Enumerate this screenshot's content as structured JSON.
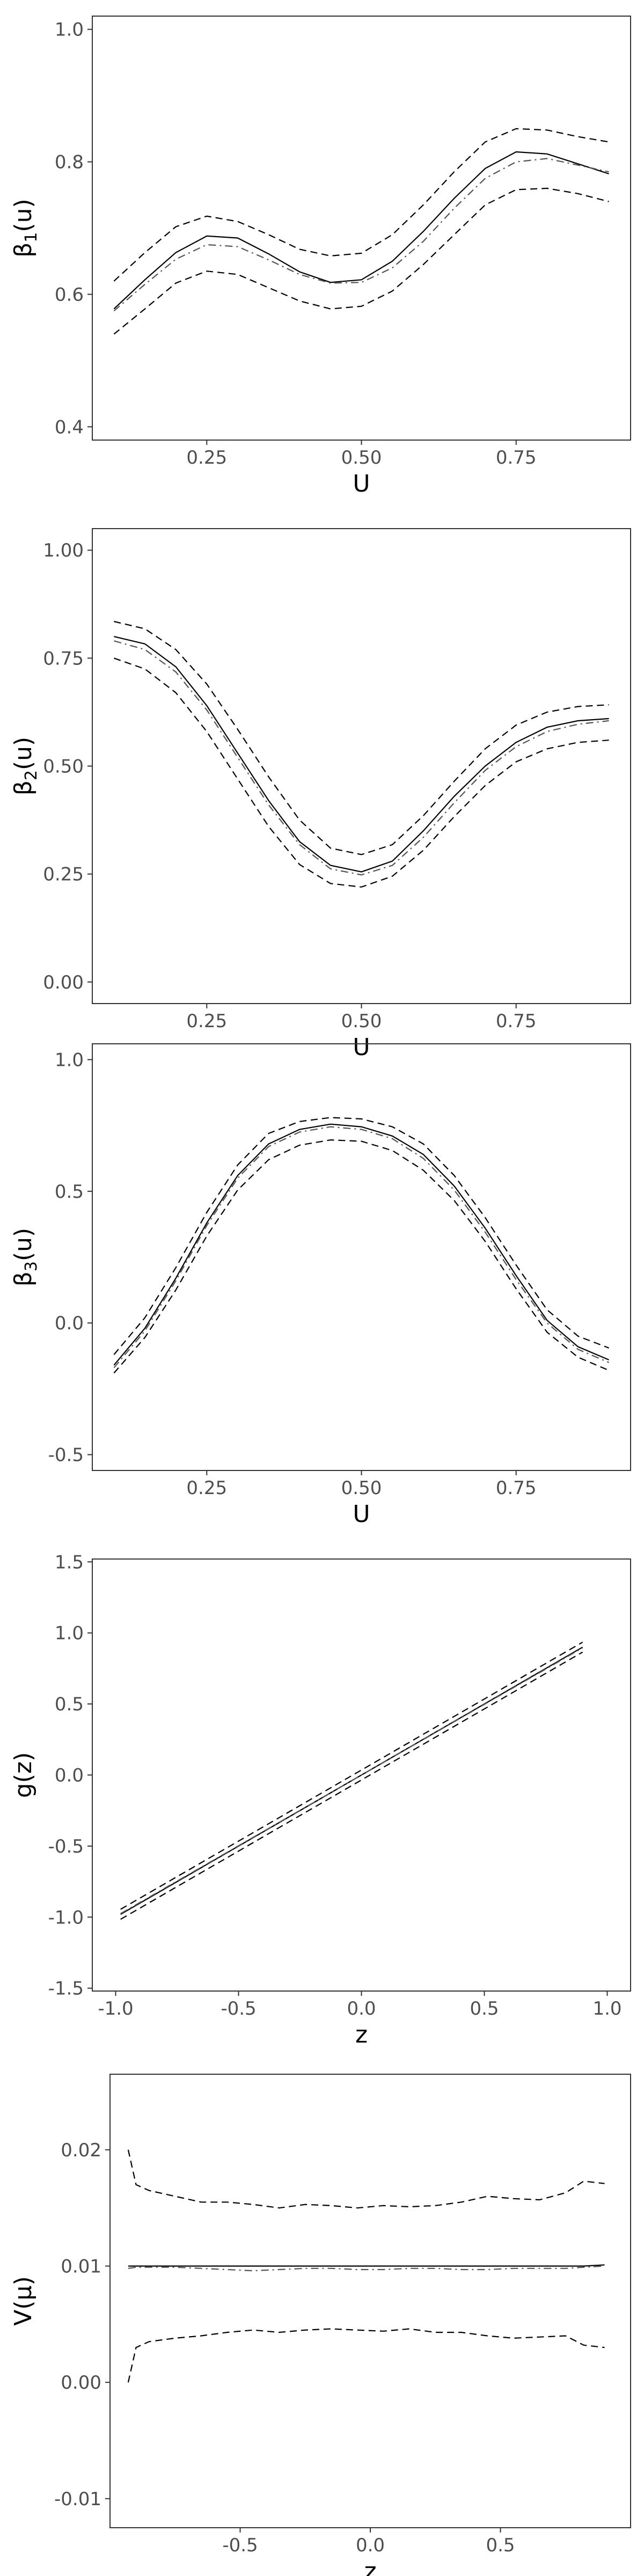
{
  "chart_data": [
    {
      "type": "line",
      "xlabel": "U",
      "ylabel": "β",
      "ylabel_sub": "1",
      "ylabel_suffix": "(u)",
      "xlim": [
        0.065,
        0.935
      ],
      "ylim": [
        0.38,
        1.02
      ],
      "xticks": [
        0.25,
        0.5,
        0.75
      ],
      "xtick_labels": [
        "0.25",
        "0.50",
        "0.75"
      ],
      "yticks": [
        0.4,
        0.6,
        0.8,
        1.0
      ],
      "ytick_labels": [
        "0.4",
        "0.6",
        "0.8",
        "1.0"
      ],
      "x": [
        0.1,
        0.15,
        0.2,
        0.25,
        0.3,
        0.35,
        0.4,
        0.45,
        0.5,
        0.55,
        0.6,
        0.65,
        0.7,
        0.75,
        0.8,
        0.85,
        0.9
      ],
      "series": [
        {
          "style": "solid",
          "values": [
            0.578,
            0.622,
            0.663,
            0.688,
            0.685,
            0.661,
            0.634,
            0.618,
            0.622,
            0.65,
            0.695,
            0.745,
            0.79,
            0.815,
            0.812,
            0.797,
            0.782
          ]
        },
        {
          "style": "dashdot",
          "values": [
            0.575,
            0.615,
            0.653,
            0.675,
            0.672,
            0.652,
            0.63,
            0.617,
            0.618,
            0.64,
            0.68,
            0.73,
            0.775,
            0.8,
            0.805,
            0.795,
            0.785
          ]
        },
        {
          "style": "dashed",
          "values": [
            0.62,
            0.663,
            0.702,
            0.718,
            0.71,
            0.69,
            0.668,
            0.658,
            0.662,
            0.69,
            0.735,
            0.785,
            0.83,
            0.85,
            0.848,
            0.838,
            0.83
          ]
        },
        {
          "style": "dashed",
          "values": [
            0.54,
            0.578,
            0.617,
            0.635,
            0.63,
            0.61,
            0.59,
            0.578,
            0.582,
            0.605,
            0.645,
            0.69,
            0.735,
            0.758,
            0.76,
            0.752,
            0.74
          ]
        }
      ]
    },
    {
      "type": "line",
      "xlabel": "U",
      "ylabel": "β",
      "ylabel_sub": "2",
      "ylabel_suffix": "(u)",
      "xlim": [
        0.065,
        0.935
      ],
      "ylim": [
        -0.05,
        1.05
      ],
      "xticks": [
        0.25,
        0.5,
        0.75
      ],
      "xtick_labels": [
        "0.25",
        "0.50",
        "0.75"
      ],
      "yticks": [
        0.0,
        0.25,
        0.5,
        0.75,
        1.0
      ],
      "ytick_labels": [
        "0.00",
        "0.25",
        "0.50",
        "0.75",
        "1.00"
      ],
      "x": [
        0.1,
        0.15,
        0.2,
        0.25,
        0.3,
        0.35,
        0.4,
        0.45,
        0.5,
        0.55,
        0.6,
        0.65,
        0.7,
        0.75,
        0.8,
        0.85,
        0.9
      ],
      "series": [
        {
          "style": "solid",
          "values": [
            0.8,
            0.783,
            0.73,
            0.64,
            0.53,
            0.42,
            0.325,
            0.27,
            0.255,
            0.28,
            0.35,
            0.43,
            0.5,
            0.555,
            0.59,
            0.605,
            0.61
          ]
        },
        {
          "style": "dashdot",
          "values": [
            0.79,
            0.77,
            0.718,
            0.63,
            0.52,
            0.41,
            0.318,
            0.262,
            0.248,
            0.27,
            0.335,
            0.415,
            0.49,
            0.545,
            0.58,
            0.597,
            0.605
          ]
        },
        {
          "style": "dashed",
          "values": [
            0.835,
            0.818,
            0.77,
            0.69,
            0.585,
            0.475,
            0.375,
            0.31,
            0.295,
            0.318,
            0.385,
            0.465,
            0.54,
            0.595,
            0.625,
            0.638,
            0.642
          ]
        },
        {
          "style": "dashed",
          "values": [
            0.75,
            0.725,
            0.67,
            0.58,
            0.47,
            0.36,
            0.272,
            0.228,
            0.22,
            0.245,
            0.305,
            0.383,
            0.455,
            0.51,
            0.54,
            0.555,
            0.56
          ]
        }
      ]
    },
    {
      "type": "line",
      "xlabel": "U",
      "ylabel": "β",
      "ylabel_sub": "3",
      "ylabel_suffix": "(u)",
      "xlim": [
        0.065,
        0.935
      ],
      "ylim": [
        -0.56,
        1.06
      ],
      "xticks": [
        0.25,
        0.5,
        0.75
      ],
      "xtick_labels": [
        "0.25",
        "0.50",
        "0.75"
      ],
      "yticks": [
        -0.5,
        0.0,
        0.5,
        1.0
      ],
      "ytick_labels": [
        "-0.5",
        "0.0",
        "0.5",
        "1.0"
      ],
      "x": [
        0.1,
        0.15,
        0.2,
        0.25,
        0.3,
        0.35,
        0.4,
        0.45,
        0.5,
        0.55,
        0.6,
        0.65,
        0.7,
        0.75,
        0.8,
        0.85,
        0.9
      ],
      "series": [
        {
          "style": "solid",
          "values": [
            -0.16,
            -0.02,
            0.17,
            0.38,
            0.56,
            0.68,
            0.735,
            0.755,
            0.745,
            0.71,
            0.64,
            0.52,
            0.36,
            0.18,
            0.01,
            -0.09,
            -0.14
          ]
        },
        {
          "style": "dashdot",
          "values": [
            -0.17,
            -0.03,
            0.16,
            0.37,
            0.55,
            0.67,
            0.725,
            0.745,
            0.735,
            0.7,
            0.625,
            0.505,
            0.345,
            0.165,
            0.0,
            -0.1,
            -0.15
          ]
        },
        {
          "style": "dashed",
          "values": [
            -0.12,
            0.02,
            0.21,
            0.42,
            0.6,
            0.72,
            0.765,
            0.78,
            0.775,
            0.745,
            0.68,
            0.56,
            0.4,
            0.22,
            0.05,
            -0.05,
            -0.095
          ]
        },
        {
          "style": "dashed",
          "values": [
            -0.19,
            -0.055,
            0.125,
            0.33,
            0.505,
            0.62,
            0.675,
            0.695,
            0.69,
            0.655,
            0.58,
            0.465,
            0.31,
            0.13,
            -0.035,
            -0.13,
            -0.18
          ]
        }
      ]
    },
    {
      "type": "line",
      "xlabel": "z",
      "ylabel": "g(z)",
      "ylabel_sub": "",
      "ylabel_suffix": "",
      "xlim": [
        -1.095,
        1.095
      ],
      "ylim": [
        -1.52,
        1.52
      ],
      "xticks": [
        -1.0,
        -0.5,
        0.0,
        0.5,
        1.0
      ],
      "xtick_labels": [
        "-1.0",
        "-0.5",
        "0.0",
        "0.5",
        "1.0"
      ],
      "yticks": [
        -1.5,
        -1.0,
        -0.5,
        0.0,
        0.5,
        1.0,
        1.5
      ],
      "ytick_labels": [
        "-1.5",
        "-1.0",
        "-0.5",
        "0.0",
        "0.5",
        "1.0",
        "1.5"
      ],
      "x": [
        -0.98,
        0.9
      ],
      "series": [
        {
          "style": "solid",
          "values": [
            -0.98,
            0.9
          ]
        },
        {
          "style": "dashdot",
          "values": [
            -0.975,
            0.895
          ]
        },
        {
          "style": "dashed",
          "values": [
            -0.945,
            0.935
          ]
        },
        {
          "style": "dashed",
          "values": [
            -1.015,
            0.865
          ]
        }
      ]
    },
    {
      "type": "line",
      "xlabel": "z",
      "ylabel": "V(μ)",
      "ylabel_sub": "",
      "ylabel_suffix": "",
      "xlim": [
        -1.0,
        1.0
      ],
      "ylim": [
        -0.0125,
        0.0265
      ],
      "xticks": [
        -0.5,
        0.0,
        0.5
      ],
      "xtick_labels": [
        "-0.5",
        "0.0",
        "0.5"
      ],
      "yticks": [
        -0.01,
        0.0,
        0.01,
        0.02
      ],
      "ytick_labels": [
        "-0.01",
        "0.00",
        "0.01",
        "0.02"
      ],
      "x": [
        -0.93,
        -0.9,
        -0.85,
        -0.75,
        -0.65,
        -0.55,
        -0.45,
        -0.35,
        -0.25,
        -0.15,
        -0.05,
        0.05,
        0.15,
        0.25,
        0.35,
        0.45,
        0.55,
        0.65,
        0.75,
        0.82,
        0.9
      ],
      "series": [
        {
          "style": "solid",
          "values": [
            0.01,
            0.01,
            0.01,
            0.01,
            0.01,
            0.01,
            0.01,
            0.01,
            0.01,
            0.01,
            0.01,
            0.01,
            0.01,
            0.01,
            0.01,
            0.01,
            0.01,
            0.01,
            0.01,
            0.01,
            0.0101
          ]
        },
        {
          "style": "dashdot",
          "values": [
            0.0098,
            0.0099,
            0.0099,
            0.0099,
            0.0098,
            0.0097,
            0.0096,
            0.0097,
            0.0098,
            0.0098,
            0.0097,
            0.0097,
            0.0098,
            0.0098,
            0.0097,
            0.0097,
            0.0098,
            0.0098,
            0.0098,
            0.0099,
            0.01
          ]
        },
        {
          "style": "dashed",
          "values": [
            0.02,
            0.017,
            0.0165,
            0.016,
            0.0155,
            0.0155,
            0.0153,
            0.015,
            0.0153,
            0.0152,
            0.015,
            0.0152,
            0.0151,
            0.0152,
            0.0155,
            0.016,
            0.0158,
            0.0157,
            0.0163,
            0.0173,
            0.0171
          ]
        },
        {
          "style": "dashed",
          "values": [
            0.0,
            0.003,
            0.0035,
            0.0038,
            0.004,
            0.0043,
            0.0045,
            0.0043,
            0.0045,
            0.0046,
            0.0045,
            0.0044,
            0.0046,
            0.0043,
            0.0043,
            0.004,
            0.0038,
            0.0039,
            0.004,
            0.0032,
            0.003
          ]
        }
      ]
    }
  ],
  "colors": {
    "solid": "#000000",
    "dashdot": "#555555",
    "dashed": "#000000",
    "panel_border": "#333333",
    "tick_label": "#4d4d4d"
  }
}
